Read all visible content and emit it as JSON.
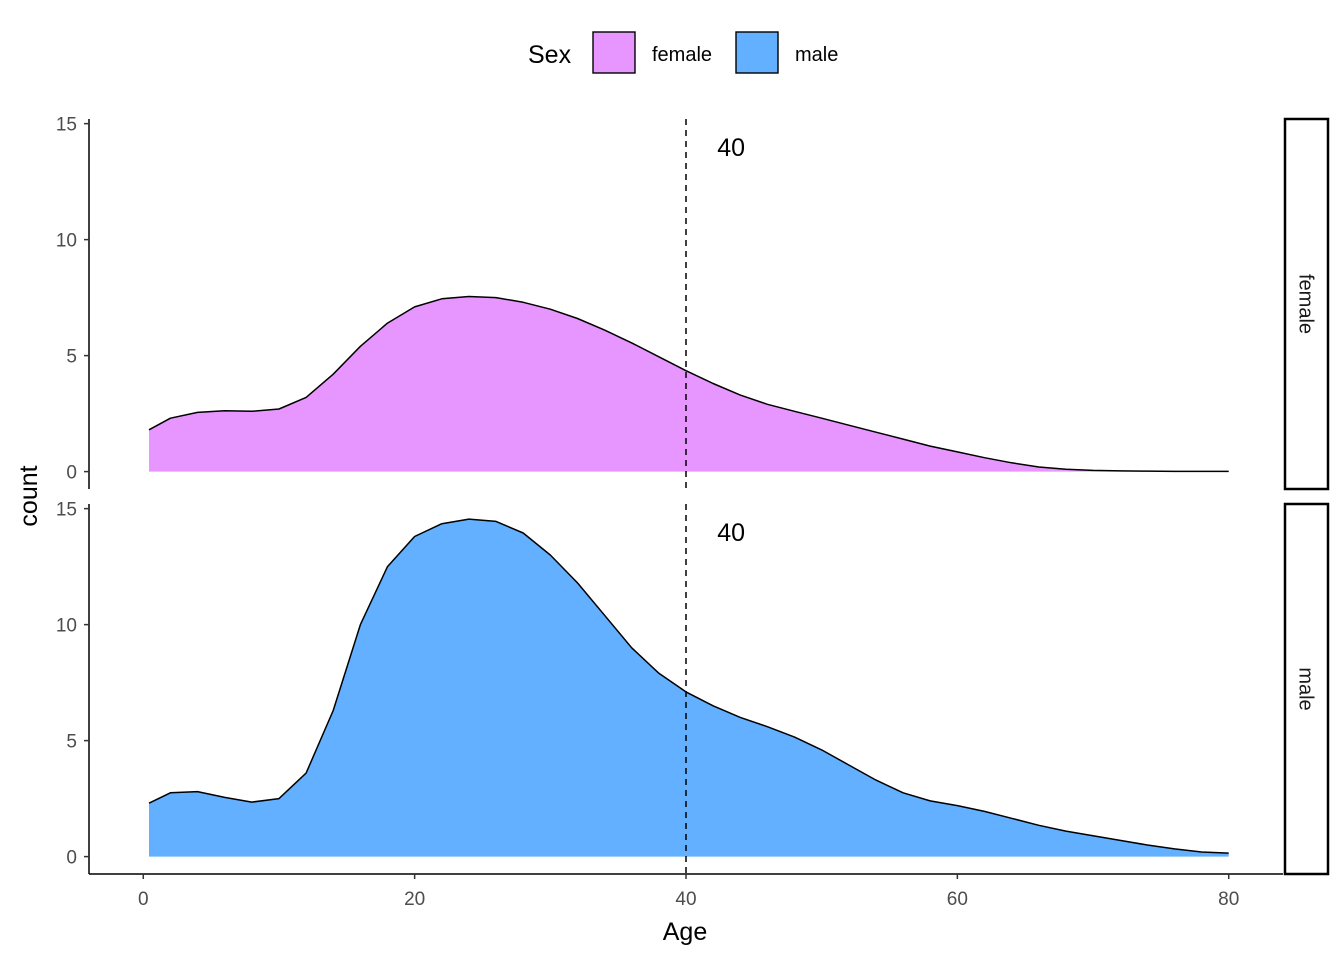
{
  "chart_data": {
    "type": "area",
    "xlabel": "Age",
    "ylabel": "count",
    "xlim": [
      -4,
      84
    ],
    "ylim": [
      -0.75,
      15.2
    ],
    "x_ticks": [
      0,
      20,
      40,
      60,
      80
    ],
    "y_ticks": [
      0,
      5,
      10,
      15
    ],
    "grid": false,
    "legend": {
      "title": "Sex",
      "position": "top",
      "entries": [
        {
          "label": "female",
          "color": "#E796FF"
        },
        {
          "label": "male",
          "color": "#62B0FF"
        }
      ]
    },
    "facets": [
      {
        "strip": "female",
        "color": "#E796FF",
        "vline_x": 40,
        "annotation": {
          "text": "40",
          "x": 42.3,
          "y": 14
        },
        "x": [
          0.42,
          2,
          4,
          6,
          8,
          10,
          12,
          14,
          16,
          18,
          20,
          22,
          24,
          26,
          28,
          30,
          32,
          34,
          36,
          38,
          40,
          42,
          44,
          46,
          48,
          50,
          52,
          54,
          56,
          58,
          60,
          62,
          64,
          66,
          68,
          70,
          72,
          74,
          76,
          78,
          80
        ],
        "y": [
          1.8,
          2.3,
          2.55,
          2.62,
          2.6,
          2.7,
          3.2,
          4.2,
          5.4,
          6.4,
          7.1,
          7.45,
          7.55,
          7.5,
          7.3,
          7.0,
          6.6,
          6.1,
          5.55,
          4.95,
          4.35,
          3.8,
          3.3,
          2.9,
          2.6,
          2.3,
          2.0,
          1.7,
          1.4,
          1.1,
          0.85,
          0.6,
          0.38,
          0.2,
          0.1,
          0.05,
          0.03,
          0.02,
          0.01,
          0.01,
          0.01
        ]
      },
      {
        "strip": "male",
        "color": "#62B0FF",
        "vline_x": 40,
        "annotation": {
          "text": "40",
          "x": 42.3,
          "y": 14
        },
        "x": [
          0.42,
          2,
          4,
          6,
          8,
          10,
          12,
          14,
          16,
          18,
          20,
          22,
          24,
          26,
          28,
          30,
          32,
          34,
          36,
          38,
          40,
          42,
          44,
          46,
          48,
          50,
          52,
          54,
          56,
          58,
          60,
          62,
          64,
          66,
          68,
          70,
          72,
          74,
          76,
          78,
          80
        ],
        "y": [
          2.3,
          2.75,
          2.8,
          2.55,
          2.35,
          2.5,
          3.6,
          6.3,
          10.0,
          12.5,
          13.8,
          14.35,
          14.55,
          14.45,
          13.95,
          13.0,
          11.8,
          10.4,
          9.0,
          7.9,
          7.1,
          6.5,
          6.0,
          5.6,
          5.15,
          4.6,
          3.95,
          3.3,
          2.75,
          2.4,
          2.2,
          1.95,
          1.65,
          1.35,
          1.1,
          0.9,
          0.7,
          0.5,
          0.33,
          0.2,
          0.15
        ]
      }
    ]
  }
}
